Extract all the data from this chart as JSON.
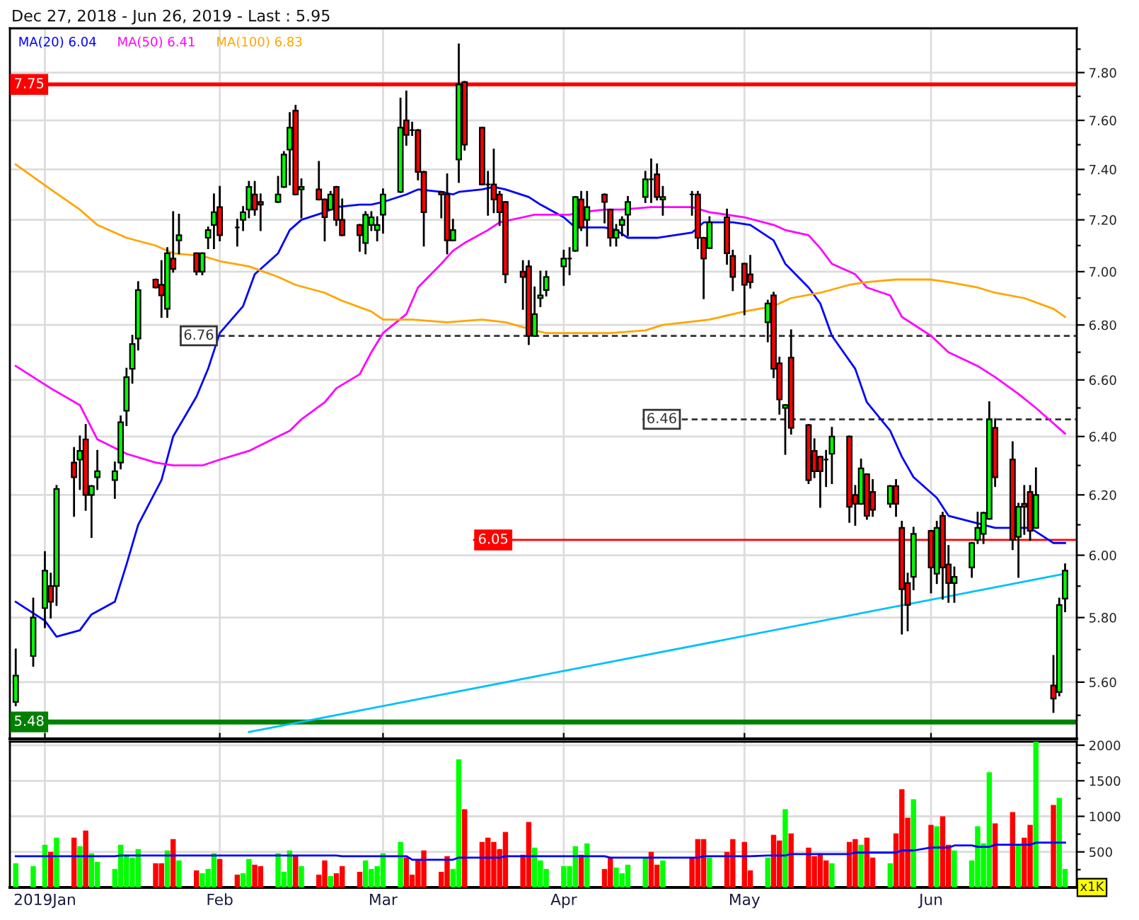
{
  "chart_data": [
    {
      "type": "candlestick",
      "title": "Dec 27, 2018 - Jun 26, 2019 - Last : 5.95",
      "x": [
        "2018-12-28",
        "2018-12-31",
        "2019-01-02",
        "2019-01-03",
        "2019-01-04",
        "2019-01-07",
        "2019-01-08",
        "2019-01-09",
        "2019-01-10",
        "2019-01-11",
        "2019-01-14",
        "2019-01-15",
        "2019-01-16",
        "2019-01-17",
        "2019-01-18",
        "2019-01-21",
        "2019-01-22",
        "2019-01-23",
        "2019-01-24",
        "2019-01-25",
        "2019-01-28",
        "2019-01-29",
        "2019-01-30",
        "2019-01-31",
        "2019-02-01",
        "2019-02-04",
        "2019-02-05",
        "2019-02-06",
        "2019-02-07",
        "2019-02-08",
        "2019-02-11",
        "2019-02-12",
        "2019-02-13",
        "2019-02-14",
        "2019-02-15",
        "2019-02-18",
        "2019-02-19",
        "2019-02-20",
        "2019-02-21",
        "2019-02-22",
        "2019-02-25",
        "2019-02-26",
        "2019-02-27",
        "2019-02-28",
        "2019-03-01",
        "2019-03-04",
        "2019-03-05",
        "2019-03-06",
        "2019-03-07",
        "2019-03-08",
        "2019-03-11",
        "2019-03-12",
        "2019-03-13",
        "2019-03-14",
        "2019-03-15",
        "2019-03-18",
        "2019-03-19",
        "2019-03-20",
        "2019-03-21",
        "2019-03-22",
        "2019-03-25",
        "2019-03-26",
        "2019-03-27",
        "2019-03-28",
        "2019-03-29",
        "2019-04-01",
        "2019-04-02",
        "2019-04-03",
        "2019-04-04",
        "2019-04-05",
        "2019-04-08",
        "2019-04-09",
        "2019-04-10",
        "2019-04-11",
        "2019-04-12",
        "2019-04-15",
        "2019-04-16",
        "2019-04-17",
        "2019-04-18",
        "2019-04-23",
        "2019-04-24",
        "2019-04-25",
        "2019-04-26",
        "2019-04-29",
        "2019-04-30",
        "2019-05-02",
        "2019-05-03",
        "2019-05-06",
        "2019-05-07",
        "2019-05-08",
        "2019-05-09",
        "2019-05-10",
        "2019-05-13",
        "2019-05-14",
        "2019-05-15",
        "2019-05-16",
        "2019-05-17",
        "2019-05-20",
        "2019-05-21",
        "2019-05-22",
        "2019-05-23",
        "2019-05-24",
        "2019-05-27",
        "2019-05-28",
        "2019-05-29",
        "2019-05-30",
        "2019-05-31",
        "2019-06-03",
        "2019-06-04",
        "2019-06-05",
        "2019-06-06",
        "2019-06-07",
        "2019-06-10",
        "2019-06-11",
        "2019-06-12",
        "2019-06-13",
        "2019-06-14",
        "2019-06-17",
        "2019-06-18",
        "2019-06-19",
        "2019-06-20",
        "2019-06-21",
        "2019-06-24",
        "2019-06-25",
        "2019-06-26"
      ],
      "ohlc": [
        [
          5.54,
          5.7,
          5.53,
          5.62
        ],
        [
          5.68,
          5.86,
          5.65,
          5.8
        ],
        [
          5.83,
          6.01,
          5.77,
          5.95
        ],
        [
          5.9,
          5.94,
          5.8,
          5.85
        ],
        [
          5.9,
          6.23,
          5.84,
          6.22
        ],
        [
          6.31,
          6.36,
          6.13,
          6.26
        ],
        [
          6.32,
          6.4,
          6.22,
          6.35
        ],
        [
          6.39,
          6.44,
          6.15,
          6.2
        ],
        [
          6.2,
          6.23,
          6.06,
          6.23
        ],
        [
          6.26,
          6.35,
          6.22,
          6.28
        ],
        [
          6.25,
          6.31,
          6.19,
          6.28
        ],
        [
          6.31,
          6.47,
          6.29,
          6.45
        ],
        [
          6.49,
          6.64,
          6.44,
          6.61
        ],
        [
          6.64,
          6.76,
          6.59,
          6.73
        ],
        [
          6.75,
          6.96,
          6.71,
          6.93
        ],
        [
          6.97,
          6.97,
          6.94,
          6.94
        ],
        [
          6.95,
          7.04,
          6.83,
          6.91
        ],
        [
          6.86,
          7.09,
          6.83,
          7.07
        ],
        [
          7.05,
          7.23,
          7.0,
          7.01
        ],
        [
          7.12,
          7.22,
          7.07,
          7.14
        ],
        [
          7.07,
          7.07,
          6.99,
          7.0
        ],
        [
          7.0,
          7.07,
          6.99,
          7.07
        ],
        [
          7.13,
          7.17,
          7.09,
          7.16
        ],
        [
          7.18,
          7.3,
          7.09,
          7.23
        ],
        [
          7.25,
          7.33,
          7.12,
          7.14
        ],
        [
          7.17,
          7.2,
          7.1,
          7.17
        ],
        [
          7.2,
          7.25,
          7.16,
          7.23
        ],
        [
          7.24,
          7.35,
          7.21,
          7.33
        ],
        [
          7.3,
          7.35,
          7.22,
          7.24
        ],
        [
          7.27,
          7.3,
          7.16,
          7.26
        ],
        [
          7.27,
          7.37,
          7.27,
          7.3
        ],
        [
          7.33,
          7.47,
          7.33,
          7.46
        ],
        [
          7.48,
          7.63,
          7.34,
          7.57
        ],
        [
          7.64,
          7.66,
          7.3,
          7.3
        ],
        [
          7.32,
          7.36,
          7.21,
          7.33
        ],
        [
          7.32,
          7.43,
          7.28,
          7.28
        ],
        [
          7.28,
          7.28,
          7.12,
          7.21
        ],
        [
          7.24,
          7.31,
          7.24,
          7.3
        ],
        [
          7.33,
          7.33,
          7.18,
          7.2
        ],
        [
          7.2,
          7.28,
          7.14,
          7.14
        ],
        [
          7.18,
          7.18,
          7.08,
          7.14
        ],
        [
          7.11,
          7.23,
          7.07,
          7.22
        ],
        [
          7.18,
          7.23,
          7.16,
          7.21
        ],
        [
          7.16,
          7.21,
          7.12,
          7.18
        ],
        [
          7.22,
          7.32,
          7.15,
          7.3
        ],
        [
          7.31,
          7.69,
          7.31,
          7.57
        ],
        [
          7.6,
          7.72,
          7.5,
          7.54
        ],
        [
          7.56,
          7.59,
          7.54,
          7.56
        ],
        [
          7.56,
          7.56,
          7.36,
          7.39
        ],
        [
          7.39,
          7.39,
          7.1,
          7.23
        ],
        [
          7.31,
          7.31,
          7.21,
          7.3
        ],
        [
          7.3,
          7.38,
          7.07,
          7.12
        ],
        [
          7.12,
          7.2,
          7.12,
          7.16
        ],
        [
          7.44,
          7.92,
          7.35,
          7.75
        ],
        [
          7.76,
          7.76,
          7.48,
          7.5
        ],
        [
          7.57,
          7.57,
          7.34,
          7.34
        ],
        [
          7.34,
          7.39,
          7.22,
          7.34
        ],
        [
          7.34,
          7.48,
          7.23,
          7.28
        ],
        [
          7.3,
          7.31,
          7.18,
          7.23
        ],
        [
          7.27,
          7.27,
          6.96,
          6.99
        ],
        [
          7.0,
          7.04,
          6.86,
          6.98
        ],
        [
          7.02,
          7.04,
          6.73,
          6.76
        ],
        [
          6.76,
          6.94,
          6.76,
          6.84
        ],
        [
          6.9,
          7.0,
          6.87,
          6.91
        ],
        [
          6.93,
          7.0,
          6.91,
          6.98
        ],
        [
          7.02,
          7.08,
          6.95,
          7.05
        ],
        [
          7.05,
          7.09,
          6.99,
          7.05
        ],
        [
          7.08,
          7.29,
          7.08,
          7.29
        ],
        [
          7.28,
          7.31,
          7.16,
          7.17
        ],
        [
          7.2,
          7.31,
          7.1,
          7.25
        ],
        [
          7.3,
          7.3,
          7.19,
          7.27
        ],
        [
          7.24,
          7.24,
          7.1,
          7.13
        ],
        [
          7.13,
          7.18,
          7.1,
          7.16
        ],
        [
          7.18,
          7.21,
          7.14,
          7.2
        ],
        [
          7.22,
          7.29,
          7.14,
          7.27
        ],
        [
          7.29,
          7.39,
          7.27,
          7.36
        ],
        [
          7.36,
          7.44,
          7.27,
          7.36
        ],
        [
          7.38,
          7.42,
          7.28,
          7.29
        ],
        [
          7.28,
          7.33,
          7.22,
          7.29
        ],
        [
          7.3,
          7.31,
          7.22,
          7.3
        ],
        [
          7.3,
          7.31,
          7.09,
          7.13
        ],
        [
          7.13,
          7.13,
          6.9,
          7.05
        ],
        [
          7.09,
          7.21,
          7.09,
          7.19
        ],
        [
          7.21,
          7.24,
          7.03,
          7.07
        ],
        [
          7.06,
          7.08,
          6.93,
          6.98
        ],
        [
          7.03,
          7.03,
          6.84,
          6.95
        ],
        [
          6.99,
          7.06,
          6.94,
          6.96
        ],
        [
          6.81,
          6.89,
          6.74,
          6.88
        ],
        [
          6.91,
          6.92,
          6.61,
          6.64
        ],
        [
          6.66,
          6.68,
          6.48,
          6.53
        ],
        [
          6.5,
          6.51,
          6.34,
          6.51
        ],
        [
          6.68,
          6.78,
          6.41,
          6.43
        ],
        [
          6.44,
          6.44,
          6.24,
          6.25
        ],
        [
          6.35,
          6.39,
          6.26,
          6.28
        ],
        [
          6.33,
          6.33,
          6.16,
          6.28
        ],
        [
          6.32,
          6.35,
          6.23,
          6.32
        ],
        [
          6.34,
          6.43,
          6.24,
          6.4
        ],
        [
          6.4,
          6.4,
          6.11,
          6.16
        ],
        [
          6.2,
          6.23,
          6.1,
          6.17
        ],
        [
          6.17,
          6.32,
          6.17,
          6.29
        ],
        [
          6.27,
          6.27,
          6.12,
          6.13
        ],
        [
          6.21,
          6.25,
          6.13,
          6.15
        ],
        [
          6.17,
          6.23,
          6.16,
          6.23
        ],
        [
          6.23,
          6.25,
          6.13,
          6.17
        ],
        [
          6.09,
          6.11,
          5.75,
          5.89
        ],
        [
          5.91,
          5.94,
          5.76,
          5.84
        ],
        [
          5.93,
          6.09,
          5.89,
          6.07
        ],
        [
          6.08,
          6.08,
          5.88,
          5.96
        ],
        [
          5.94,
          6.11,
          5.91,
          6.09
        ],
        [
          6.13,
          6.14,
          5.86,
          5.96
        ],
        [
          5.97,
          6.03,
          5.85,
          5.91
        ],
        [
          5.91,
          5.96,
          5.85,
          5.93
        ],
        [
          5.96,
          6.04,
          5.93,
          6.04
        ],
        [
          6.05,
          6.14,
          6.04,
          6.09
        ],
        [
          6.07,
          6.14,
          6.04,
          6.14
        ],
        [
          6.12,
          6.52,
          6.12,
          6.46
        ],
        [
          6.43,
          6.46,
          6.23,
          6.26
        ],
        [
          6.32,
          6.38,
          6.02,
          6.05
        ],
        [
          6.06,
          6.17,
          5.93,
          6.16
        ],
        [
          6.17,
          6.23,
          6.07,
          6.16
        ],
        [
          6.21,
          6.23,
          6.05,
          6.08
        ],
        [
          6.09,
          6.29,
          6.09,
          6.2
        ],
        [
          5.59,
          5.68,
          5.51,
          5.55
        ],
        [
          5.57,
          5.86,
          5.56,
          5.84
        ],
        [
          5.86,
          5.97,
          5.82,
          5.95
        ]
      ],
      "colors": [
        "#00ff00",
        "#00ff00",
        "#00ff00",
        "#ff0000",
        "#00ff00",
        "#ff0000",
        "#00ff00",
        "#ff0000",
        "#00ff00",
        "#00ff00",
        "#00ff00",
        "#00ff00",
        "#00ff00",
        "#00ff00",
        "#00ff00",
        "#ff0000",
        "#ff0000",
        "#00ff00",
        "#ff0000",
        "#00ff00",
        "#ff0000",
        "#00ff00",
        "#00ff00",
        "#00ff00",
        "#ff0000",
        "#000000",
        "#00ff00",
        "#00ff00",
        "#ff0000",
        "#ff0000",
        "#00ff00",
        "#00ff00",
        "#00ff00",
        "#ff0000",
        "#00ff00",
        "#ff0000",
        "#ff0000",
        "#00ff00",
        "#ff0000",
        "#ff0000",
        "#ff0000",
        "#00ff00",
        "#00ff00",
        "#00ff00",
        "#00ff00",
        "#00ff00",
        "#ff0000",
        "#000000",
        "#ff0000",
        "#ff0000",
        "#ff0000",
        "#ff0000",
        "#00ff00",
        "#00ff00",
        "#ff0000",
        "#ff0000",
        "#000000",
        "#ff0000",
        "#ff0000",
        "#ff0000",
        "#ff0000",
        "#ff0000",
        "#00ff00",
        "#00ff00",
        "#00ff00",
        "#00ff00",
        "#000000",
        "#00ff00",
        "#ff0000",
        "#00ff00",
        "#ff0000",
        "#ff0000",
        "#00ff00",
        "#00ff00",
        "#00ff00",
        "#00ff00",
        "#000000",
        "#ff0000",
        "#00ff00",
        "#000000",
        "#ff0000",
        "#ff0000",
        "#00ff00",
        "#ff0000",
        "#ff0000",
        "#ff0000",
        "#ff0000",
        "#00ff00",
        "#ff0000",
        "#ff0000",
        "#00ff00",
        "#ff0000",
        "#ff0000",
        "#ff0000",
        "#ff0000",
        "#000000",
        "#00ff00",
        "#ff0000",
        "#ff0000",
        "#00ff00",
        "#ff0000",
        "#ff0000",
        "#00ff00",
        "#ff0000",
        "#ff0000",
        "#ff0000",
        "#00ff00",
        "#ff0000",
        "#00ff00",
        "#ff0000",
        "#ff0000",
        "#00ff00",
        "#00ff00",
        "#00ff00",
        "#00ff00",
        "#00ff00",
        "#ff0000",
        "#ff0000",
        "#00ff00",
        "#ff0000",
        "#ff0000",
        "#00ff00",
        "#ff0000",
        "#00ff00",
        "#00ff00"
      ],
      "series": [
        {
          "type": "line",
          "name": "MA(20) 6.04",
          "color": "#0000ff",
          "x": [
            "2018-12-28",
            "2019-01-02",
            "2019-01-04",
            "2019-01-08",
            "2019-01-10",
            "2019-01-14",
            "2019-01-16",
            "2019-01-18",
            "2019-01-22",
            "2019-01-24",
            "2019-01-28",
            "2019-01-30",
            "2019-02-01",
            "2019-02-05",
            "2019-02-07",
            "2019-02-11",
            "2019-02-13",
            "2019-02-15",
            "2019-02-19",
            "2019-02-21",
            "2019-02-25",
            "2019-02-27",
            "2019-03-01",
            "2019-03-05",
            "2019-03-07",
            "2019-03-11",
            "2019-03-13",
            "2019-03-14",
            "2019-03-18",
            "2019-03-20",
            "2019-03-22",
            "2019-03-26",
            "2019-03-28",
            "2019-04-01",
            "2019-04-03",
            "2019-04-08",
            "2019-04-10",
            "2019-04-12",
            "2019-04-17",
            "2019-04-23",
            "2019-04-25",
            "2019-04-30",
            "2019-05-03",
            "2019-05-07",
            "2019-05-09",
            "2019-05-13",
            "2019-05-15",
            "2019-05-17",
            "2019-05-21",
            "2019-05-23",
            "2019-05-27",
            "2019-05-29",
            "2019-05-31",
            "2019-06-04",
            "2019-06-06",
            "2019-06-10",
            "2019-06-12",
            "2019-06-14",
            "2019-06-18",
            "2019-06-20",
            "2019-06-24",
            "2019-06-26"
          ],
          "values": [
            5.85,
            5.79,
            5.74,
            5.76,
            5.81,
            5.85,
            5.97,
            6.1,
            6.25,
            6.4,
            6.54,
            6.64,
            6.77,
            6.87,
            6.99,
            7.07,
            7.16,
            7.2,
            7.23,
            7.25,
            7.26,
            7.26,
            7.27,
            7.3,
            7.32,
            7.31,
            7.3,
            7.31,
            7.32,
            7.33,
            7.32,
            7.29,
            7.26,
            7.21,
            7.17,
            7.17,
            7.16,
            7.13,
            7.13,
            7.15,
            7.19,
            7.19,
            7.18,
            7.12,
            7.03,
            6.94,
            6.88,
            6.76,
            6.64,
            6.52,
            6.42,
            6.33,
            6.26,
            6.19,
            6.13,
            6.11,
            6.1,
            6.09,
            6.09,
            6.09,
            6.04,
            6.04
          ]
        },
        {
          "type": "line",
          "name": "MA(50) 6.41",
          "color": "#ff00ff",
          "x": [
            "2018-12-28",
            "2019-01-03",
            "2019-01-08",
            "2019-01-11",
            "2019-01-16",
            "2019-01-21",
            "2019-01-24",
            "2019-01-29",
            "2019-02-01",
            "2019-02-06",
            "2019-02-11",
            "2019-02-13",
            "2019-02-15",
            "2019-02-19",
            "2019-02-21",
            "2019-02-25",
            "2019-02-27",
            "2019-03-01",
            "2019-03-05",
            "2019-03-07",
            "2019-03-11",
            "2019-03-13",
            "2019-03-15",
            "2019-03-19",
            "2019-03-21",
            "2019-03-25",
            "2019-03-27",
            "2019-03-29",
            "2019-04-02",
            "2019-04-04",
            "2019-04-08",
            "2019-04-11",
            "2019-04-16",
            "2019-04-23",
            "2019-04-26",
            "2019-05-02",
            "2019-05-07",
            "2019-05-09",
            "2019-05-13",
            "2019-05-15",
            "2019-05-17",
            "2019-05-21",
            "2019-05-23",
            "2019-05-27",
            "2019-05-29",
            "2019-06-03",
            "2019-06-06",
            "2019-06-11",
            "2019-06-14",
            "2019-06-18",
            "2019-06-21",
            "2019-06-26"
          ],
          "values": [
            6.65,
            6.57,
            6.51,
            6.39,
            6.34,
            6.31,
            6.3,
            6.3,
            6.32,
            6.35,
            6.4,
            6.42,
            6.46,
            6.52,
            6.57,
            6.62,
            6.7,
            6.77,
            6.84,
            6.94,
            7.03,
            7.08,
            7.11,
            7.16,
            7.19,
            7.21,
            7.22,
            7.22,
            7.22,
            7.23,
            7.24,
            7.24,
            7.25,
            7.25,
            7.23,
            7.21,
            7.18,
            7.16,
            7.14,
            7.09,
            7.03,
            6.99,
            6.94,
            6.91,
            6.83,
            6.76,
            6.7,
            6.65,
            6.61,
            6.55,
            6.5,
            6.41
          ]
        },
        {
          "type": "line",
          "name": "MA(100) 6.83",
          "color": "#ffa500",
          "x": [
            "2018-12-28",
            "2019-01-03",
            "2019-01-08",
            "2019-01-11",
            "2019-01-16",
            "2019-01-21",
            "2019-01-24",
            "2019-01-29",
            "2019-02-01",
            "2019-02-06",
            "2019-02-11",
            "2019-02-14",
            "2019-02-19",
            "2019-02-22",
            "2019-02-27",
            "2019-03-01",
            "2019-03-06",
            "2019-03-12",
            "2019-03-18",
            "2019-03-22",
            "2019-03-27",
            "2019-03-29",
            "2019-04-03",
            "2019-04-09",
            "2019-04-15",
            "2019-04-18",
            "2019-04-26",
            "2019-05-02",
            "2019-05-07",
            "2019-05-10",
            "2019-05-15",
            "2019-05-20",
            "2019-05-23",
            "2019-05-28",
            "2019-06-03",
            "2019-06-06",
            "2019-06-11",
            "2019-06-14",
            "2019-06-19",
            "2019-06-24",
            "2019-06-26"
          ],
          "values": [
            7.42,
            7.32,
            7.24,
            7.18,
            7.13,
            7.1,
            7.07,
            7.06,
            7.04,
            7.02,
            6.98,
            6.95,
            6.92,
            6.89,
            6.85,
            6.82,
            6.82,
            6.81,
            6.82,
            6.81,
            6.78,
            6.77,
            6.77,
            6.77,
            6.78,
            6.8,
            6.82,
            6.85,
            6.87,
            6.9,
            6.92,
            6.95,
            6.96,
            6.97,
            6.97,
            6.96,
            6.94,
            6.92,
            6.9,
            6.86,
            6.83
          ]
        },
        {
          "type": "line",
          "color": "#00bfff",
          "x": [
            "2019-02-06",
            "2019-06-26"
          ],
          "values": [
            5.45,
            5.94
          ]
        }
      ],
      "ref_lines": [
        {
          "axis": "y",
          "value": 7.75,
          "label": "7.75",
          "color": "#ff0000",
          "line_style": "solid"
        },
        {
          "axis": "y",
          "value": 6.76,
          "label": "6.76",
          "color": "#333333",
          "line_style": "dashed"
        },
        {
          "axis": "y",
          "value": 6.46,
          "label": "6.46",
          "color": "#333333",
          "line_style": "dashed"
        },
        {
          "axis": "y",
          "value": 6.05,
          "label": "6.05",
          "color": "#ff0000",
          "line_style": "solid"
        },
        {
          "axis": "y",
          "value": 5.48,
          "label": "5.48",
          "color": "#008000",
          "line_style": "solid"
        }
      ],
      "xlim": [
        "2018-12-27",
        "2019-06-28"
      ],
      "xticks": [
        {
          "value": "2019-01-02",
          "label": null
        },
        {
          "value": "2019-02-01",
          "label": null
        },
        {
          "value": "2019-03-01",
          "label": null
        },
        {
          "value": "2019-04-01",
          "label": null
        },
        {
          "value": "2019-05-02",
          "label": null
        },
        {
          "value": "2019-06-03",
          "label": null
        }
      ],
      "ylim": [
        5.43,
        7.99
      ],
      "log": "y",
      "yticks": [
        {
          "value": 5.5,
          "label": null
        },
        {
          "value": 5.6,
          "label": "5.60"
        },
        {
          "value": 5.7,
          "label": null
        },
        {
          "value": 5.8,
          "label": "5.80"
        },
        {
          "value": 5.9,
          "label": null
        },
        {
          "value": 6.0,
          "label": "6.00"
        },
        {
          "value": 6.1,
          "label": null
        },
        {
          "value": 6.2,
          "label": "6.20"
        },
        {
          "value": 6.3,
          "label": null
        },
        {
          "value": 6.4,
          "label": "6.40"
        },
        {
          "value": 6.5,
          "label": null
        },
        {
          "value": 6.6,
          "label": "6.60"
        },
        {
          "value": 6.7,
          "label": null
        },
        {
          "value": 6.8,
          "label": "6.80"
        },
        {
          "value": 6.9,
          "label": null
        },
        {
          "value": 7.0,
          "label": "7.00"
        },
        {
          "value": 7.1,
          "label": null
        },
        {
          "value": 7.2,
          "label": "7.20"
        },
        {
          "value": 7.3,
          "label": null
        },
        {
          "value": 7.4,
          "label": "7.40"
        },
        {
          "value": 7.5,
          "label": null
        },
        {
          "value": 7.6,
          "label": "7.60"
        },
        {
          "value": 7.7,
          "label": null
        },
        {
          "value": 7.8,
          "label": "7.80"
        },
        {
          "value": 7.9,
          "label": null
        }
      ],
      "grid": true,
      "legend": "top left",
      "tick_labels": "y"
    },
    {
      "type": "bar",
      "x": [
        "2018-12-28",
        "2018-12-31",
        "2019-01-02",
        "2019-01-03",
        "2019-01-04",
        "2019-01-07",
        "2019-01-08",
        "2019-01-09",
        "2019-01-10",
        "2019-01-11",
        "2019-01-14",
        "2019-01-15",
        "2019-01-16",
        "2019-01-17",
        "2019-01-18",
        "2019-01-21",
        "2019-01-22",
        "2019-01-23",
        "2019-01-24",
        "2019-01-25",
        "2019-01-28",
        "2019-01-29",
        "2019-01-30",
        "2019-01-31",
        "2019-02-01",
        "2019-02-04",
        "2019-02-05",
        "2019-02-06",
        "2019-02-07",
        "2019-02-08",
        "2019-02-11",
        "2019-02-12",
        "2019-02-13",
        "2019-02-14",
        "2019-02-15",
        "2019-02-18",
        "2019-02-19",
        "2019-02-20",
        "2019-02-21",
        "2019-02-22",
        "2019-02-25",
        "2019-02-26",
        "2019-02-27",
        "2019-02-28",
        "2019-03-01",
        "2019-03-04",
        "2019-03-05",
        "2019-03-06",
        "2019-03-07",
        "2019-03-08",
        "2019-03-11",
        "2019-03-12",
        "2019-03-13",
        "2019-03-14",
        "2019-03-15",
        "2019-03-18",
        "2019-03-19",
        "2019-03-20",
        "2019-03-21",
        "2019-03-22",
        "2019-03-25",
        "2019-03-26",
        "2019-03-27",
        "2019-03-28",
        "2019-03-29",
        "2019-04-01",
        "2019-04-02",
        "2019-04-03",
        "2019-04-04",
        "2019-04-05",
        "2019-04-08",
        "2019-04-09",
        "2019-04-10",
        "2019-04-11",
        "2019-04-12",
        "2019-04-15",
        "2019-04-16",
        "2019-04-17",
        "2019-04-18",
        "2019-04-23",
        "2019-04-24",
        "2019-04-25",
        "2019-04-26",
        "2019-04-29",
        "2019-04-30",
        "2019-05-02",
        "2019-05-03",
        "2019-05-06",
        "2019-05-07",
        "2019-05-08",
        "2019-05-09",
        "2019-05-10",
        "2019-05-13",
        "2019-05-14",
        "2019-05-15",
        "2019-05-16",
        "2019-05-17",
        "2019-05-20",
        "2019-05-21",
        "2019-05-22",
        "2019-05-23",
        "2019-05-24",
        "2019-05-27",
        "2019-05-28",
        "2019-05-29",
        "2019-05-30",
        "2019-05-31",
        "2019-06-03",
        "2019-06-04",
        "2019-06-05",
        "2019-06-06",
        "2019-06-07",
        "2019-06-10",
        "2019-06-11",
        "2019-06-12",
        "2019-06-13",
        "2019-06-14",
        "2019-06-17",
        "2019-06-18",
        "2019-06-19",
        "2019-06-20",
        "2019-06-21",
        "2019-06-24",
        "2019-06-25",
        "2019-06-26"
      ],
      "series": [
        {
          "values": [
            340,
            300,
            600,
            500,
            700,
            700,
            580,
            800,
            480,
            360,
            260,
            600,
            460,
            420,
            540,
            340,
            340,
            520,
            680,
            380,
            240,
            200,
            260,
            480,
            400,
            180,
            200,
            400,
            320,
            300,
            480,
            220,
            520,
            450,
            300,
            180,
            380,
            160,
            200,
            300,
            220,
            380,
            260,
            300,
            480,
            640,
            420,
            180,
            380,
            520,
            220,
            440,
            260,
            1800,
            1100,
            640,
            700,
            640,
            540,
            780,
            460,
            920,
            560,
            380,
            260,
            300,
            300,
            580,
            460,
            620,
            260,
            420,
            280,
            200,
            320,
            420,
            500,
            320,
            380,
            420,
            680,
            680,
            420,
            500,
            680,
            640,
            240,
            420,
            740,
            660,
            1100,
            760,
            560,
            440,
            480,
            380,
            340,
            640,
            680,
            600,
            700,
            420,
            340,
            760,
            1380,
            980,
            1240,
            880,
            860,
            1000,
            600,
            520,
            380,
            860,
            620,
            1620,
            900,
            1060,
            600,
            700,
            880,
            2050,
            1160,
            1260,
            260
          ],
          "colors": [
            "#00ff00",
            "#00ff00",
            "#00ff00",
            "#ff0000",
            "#00ff00",
            "#ff0000",
            "#00ff00",
            "#ff0000",
            "#00ff00",
            "#00ff00",
            "#00ff00",
            "#00ff00",
            "#00ff00",
            "#00ff00",
            "#00ff00",
            "#ff0000",
            "#ff0000",
            "#00ff00",
            "#ff0000",
            "#00ff00",
            "#ff0000",
            "#00ff00",
            "#00ff00",
            "#00ff00",
            "#ff0000",
            "#ff0000",
            "#00ff00",
            "#00ff00",
            "#ff0000",
            "#ff0000",
            "#00ff00",
            "#00ff00",
            "#00ff00",
            "#ff0000",
            "#00ff00",
            "#ff0000",
            "#ff0000",
            "#00ff00",
            "#ff0000",
            "#ff0000",
            "#ff0000",
            "#00ff00",
            "#00ff00",
            "#00ff00",
            "#00ff00",
            "#00ff00",
            "#ff0000",
            "#ff0000",
            "#ff0000",
            "#ff0000",
            "#ff0000",
            "#ff0000",
            "#00ff00",
            "#00ff00",
            "#ff0000",
            "#ff0000",
            "#ff0000",
            "#ff0000",
            "#ff0000",
            "#ff0000",
            "#ff0000",
            "#ff0000",
            "#00ff00",
            "#00ff00",
            "#00ff00",
            "#00ff00",
            "#00ff00",
            "#00ff00",
            "#ff0000",
            "#00ff00",
            "#ff0000",
            "#ff0000",
            "#00ff00",
            "#00ff00",
            "#00ff00",
            "#00ff00",
            "#ff0000",
            "#ff0000",
            "#00ff00",
            "#ff0000",
            "#ff0000",
            "#ff0000",
            "#00ff00",
            "#ff0000",
            "#ff0000",
            "#ff0000",
            "#ff0000",
            "#00ff00",
            "#ff0000",
            "#ff0000",
            "#00ff00",
            "#ff0000",
            "#ff0000",
            "#ff0000",
            "#ff0000",
            "#ff0000",
            "#00ff00",
            "#ff0000",
            "#ff0000",
            "#00ff00",
            "#ff0000",
            "#ff0000",
            "#00ff00",
            "#ff0000",
            "#ff0000",
            "#ff0000",
            "#00ff00",
            "#ff0000",
            "#00ff00",
            "#ff0000",
            "#ff0000",
            "#00ff00",
            "#00ff00",
            "#00ff00",
            "#00ff00",
            "#00ff00",
            "#ff0000",
            "#ff0000",
            "#00ff00",
            "#ff0000",
            "#ff0000",
            "#00ff00",
            "#ff0000",
            "#00ff00",
            "#00ff00"
          ]
        },
        {
          "type": "line",
          "color": "#0000ff",
          "x": [
            "2018-12-28",
            "2019-01-14",
            "2019-01-15",
            "2019-02-21",
            "2019-02-22",
            "2019-03-05",
            "2019-03-06",
            "2019-03-13",
            "2019-03-14",
            "2019-03-21",
            "2019-03-22",
            "2019-04-08",
            "2019-04-09",
            "2019-04-24",
            "2019-04-25",
            "2019-05-03",
            "2019-05-06",
            "2019-05-09",
            "2019-05-10",
            "2019-05-20",
            "2019-05-21",
            "2019-05-28",
            "2019-05-29",
            "2019-05-31",
            "2019-06-03",
            "2019-06-06",
            "2019-06-07",
            "2019-06-10",
            "2019-06-11",
            "2019-06-13",
            "2019-06-14",
            "2019-06-20",
            "2019-06-21",
            "2019-06-26"
          ],
          "values": [
            440,
            440,
            450,
            450,
            440,
            440,
            390,
            390,
            420,
            420,
            440,
            440,
            420,
            420,
            440,
            440,
            450,
            450,
            470,
            470,
            490,
            490,
            520,
            520,
            560,
            560,
            590,
            590,
            570,
            570,
            600,
            600,
            630,
            630
          ]
        }
      ],
      "xlim": [
        "2018-12-27",
        "2019-06-28"
      ],
      "xticks": [
        {
          "value": "2019-01-02",
          "label": "2019Jan"
        },
        {
          "value": "2019-02-01",
          "label": "Feb"
        },
        {
          "value": "2019-03-01",
          "label": "Mar"
        },
        {
          "value": "2019-04-01",
          "label": "Apr"
        },
        {
          "value": "2019-05-02",
          "label": "May"
        },
        {
          "value": "2019-06-03",
          "label": "Jun"
        }
      ],
      "ylim": [
        0,
        2050
      ],
      "yticks": [
        {
          "value": 250,
          "label": null
        },
        500,
        {
          "value": 750,
          "label": null
        },
        1000,
        {
          "value": 1250,
          "label": null
        },
        1500,
        {
          "value": 1750,
          "label": null
        },
        2000
      ],
      "ylabel": "x1K",
      "grid": true
    }
  ]
}
